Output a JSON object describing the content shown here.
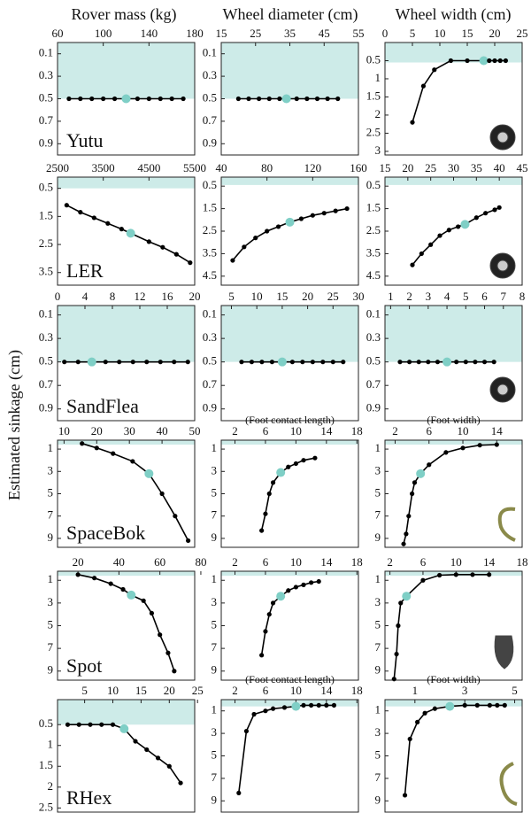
{
  "column_titles": [
    "Rover mass (kg)",
    "Wheel diameter (cm)",
    "Wheel width (cm)"
  ],
  "ylabel": "Estimated sinkage (cm)",
  "chart_data": [
    {
      "type": "line",
      "title": "Yutu",
      "x": [
        70,
        80,
        90,
        100,
        110,
        120,
        130,
        140,
        150,
        160,
        170
      ],
      "values": [
        0.5,
        0.5,
        0.5,
        0.5,
        0.5,
        0.5,
        0.5,
        0.5,
        0.5,
        0.5,
        0.5
      ],
      "highlight_index": 5,
      "color": "#000000",
      "highlight_color": "#7fcfc6",
      "xlim": [
        60,
        180
      ],
      "xticks": [
        60,
        100,
        140,
        180
      ],
      "ylim": [
        0,
        1.0
      ],
      "yticks": [
        0.1,
        0.3,
        0.5,
        0.7,
        0.9
      ],
      "y_inverted": true,
      "shade": {
        "to": 0.5,
        "color": "#cdebe8"
      }
    },
    {
      "type": "line",
      "x": [
        20,
        23,
        26,
        29,
        32,
        34,
        37,
        40,
        43,
        46,
        49
      ],
      "values": [
        0.5,
        0.5,
        0.5,
        0.5,
        0.5,
        0.5,
        0.5,
        0.5,
        0.5,
        0.5,
        0.5
      ],
      "highlight_index": 5,
      "color": "#000000",
      "highlight_color": "#7fcfc6",
      "xlim": [
        15,
        55
      ],
      "xticks": [
        15,
        25,
        35,
        45,
        55
      ],
      "ylim": [
        0,
        1.0
      ],
      "yticks": [
        0.1,
        0.3,
        0.5,
        0.7,
        0.9
      ],
      "y_inverted": true,
      "shade": {
        "to": 0.5,
        "color": "#cdebe8"
      }
    },
    {
      "type": "line",
      "x": [
        5,
        7,
        9,
        12,
        15,
        18,
        19,
        20,
        21,
        22
      ],
      "values": [
        2.2,
        1.2,
        0.75,
        0.5,
        0.5,
        0.5,
        0.5,
        0.5,
        0.5,
        0.5
      ],
      "highlight_index": 5,
      "color": "#000000",
      "highlight_color": "#7fcfc6",
      "xlim": [
        0,
        25
      ],
      "xticks": [
        0,
        5,
        10,
        15,
        20,
        25
      ],
      "ylim": [
        0,
        3.1
      ],
      "yticks": [
        0.5,
        1,
        1.5,
        2,
        2.5,
        3
      ],
      "y_inverted": true,
      "shade": {
        "to": 0.55,
        "color": "#cdebe8"
      }
    },
    {
      "type": "line",
      "title": "LER",
      "x": [
        2700,
        3000,
        3300,
        3600,
        3900,
        4100,
        4500,
        4800,
        5100,
        5400
      ],
      "values": [
        1.1,
        1.35,
        1.55,
        1.75,
        1.95,
        2.1,
        2.4,
        2.6,
        2.85,
        3.15
      ],
      "highlight_index": 5,
      "color": "#000000",
      "highlight_color": "#7fcfc6",
      "xlim": [
        2500,
        5500
      ],
      "xticks": [
        2500,
        3500,
        4500,
        5500
      ],
      "ylim": [
        0.1,
        3.95
      ],
      "yticks": [
        0.5,
        1.5,
        2.5,
        3.5
      ],
      "y_inverted": true,
      "shade": {
        "to": 0.5,
        "color": "#cdebe8"
      }
    },
    {
      "type": "line",
      "x": [
        50,
        60,
        70,
        80,
        90,
        100,
        110,
        120,
        130,
        140,
        150
      ],
      "values": [
        3.8,
        3.2,
        2.8,
        2.5,
        2.3,
        2.1,
        1.95,
        1.8,
        1.7,
        1.6,
        1.5
      ],
      "highlight_index": 5,
      "color": "#000000",
      "highlight_color": "#7fcfc6",
      "xlim": [
        40,
        160
      ],
      "xticks": [
        40,
        80,
        120,
        160
      ],
      "ylim": [
        0.1,
        4.9
      ],
      "yticks": [
        0.5,
        1.5,
        2.5,
        3.5,
        4.5
      ],
      "y_inverted": true,
      "shade": {
        "to": 0.45,
        "color": "#cdebe8"
      }
    },
    {
      "type": "line",
      "x": [
        21,
        23,
        25,
        27,
        29,
        31,
        32.5,
        35,
        37,
        39,
        40
      ],
      "values": [
        4.0,
        3.5,
        3.1,
        2.7,
        2.45,
        2.3,
        2.2,
        1.9,
        1.7,
        1.55,
        1.45
      ],
      "highlight_index": 6,
      "color": "#000000",
      "highlight_color": "#7fcfc6",
      "xlim": [
        15,
        45
      ],
      "xticks": [
        15,
        20,
        25,
        30,
        35,
        40,
        45
      ],
      "ylim": [
        0.1,
        4.9
      ],
      "yticks": [
        0.5,
        1.5,
        2.5,
        3.5,
        4.5
      ],
      "y_inverted": true,
      "shade": {
        "to": 0.45,
        "color": "#cdebe8"
      }
    },
    {
      "type": "line",
      "title": "SandFlea",
      "x": [
        1,
        3,
        5,
        7,
        9,
        11,
        13,
        15,
        17,
        19
      ],
      "values": [
        0.5,
        0.5,
        0.5,
        0.5,
        0.5,
        0.5,
        0.5,
        0.5,
        0.5,
        0.5
      ],
      "highlight_index": 2,
      "color": "#000000",
      "highlight_color": "#7fcfc6",
      "xlim": [
        0,
        20
      ],
      "xticks": [
        0,
        4,
        8,
        12,
        16,
        20
      ],
      "ylim": [
        0.02,
        1.0
      ],
      "yticks": [
        0.1,
        0.3,
        0.5,
        0.7,
        0.9
      ],
      "y_inverted": true,
      "shade": {
        "to": 0.5,
        "color": "#cdebe8"
      }
    },
    {
      "type": "line",
      "x": [
        7,
        9,
        11,
        13,
        15,
        17,
        19,
        21,
        23,
        25,
        27
      ],
      "values": [
        0.5,
        0.5,
        0.5,
        0.5,
        0.5,
        0.5,
        0.5,
        0.5,
        0.5,
        0.5,
        0.5
      ],
      "highlight_index": 4,
      "color": "#000000",
      "highlight_color": "#7fcfc6",
      "xlim": [
        3,
        30
      ],
      "xticks": [
        5,
        10,
        15,
        20,
        25,
        30
      ],
      "ylim": [
        0.02,
        1.0
      ],
      "yticks": [
        0.1,
        0.3,
        0.5,
        0.7,
        0.9
      ],
      "y_inverted": true,
      "shade": {
        "to": 0.5,
        "color": "#cdebe8"
      }
    },
    {
      "type": "line",
      "x": [
        1.5,
        2,
        2.5,
        3,
        3.5,
        4,
        4.5,
        5,
        5.5,
        6,
        6.5
      ],
      "values": [
        0.5,
        0.5,
        0.5,
        0.5,
        0.5,
        0.5,
        0.5,
        0.5,
        0.5,
        0.5,
        0.5
      ],
      "highlight_index": 5,
      "color": "#000000",
      "highlight_color": "#7fcfc6",
      "xlim": [
        0.7,
        8
      ],
      "xticks": [
        1,
        2,
        3,
        4,
        5,
        6,
        7,
        8
      ],
      "ylim": [
        0.02,
        1.0
      ],
      "yticks": [
        0.1,
        0.3,
        0.5,
        0.7,
        0.9
      ],
      "y_inverted": true,
      "shade": {
        "to": 0.5,
        "color": "#cdebe8"
      }
    },
    {
      "type": "line",
      "title": "SpaceBok",
      "x": [
        15.5,
        20,
        25,
        31,
        36,
        40,
        44,
        48
      ],
      "values": [
        0.5,
        0.9,
        1.4,
        2.1,
        3.2,
        5,
        7,
        9.2
      ],
      "highlight_index": 4,
      "color": "#000000",
      "highlight_color": "#7fcfc6",
      "xlim": [
        8,
        50
      ],
      "xticks": [
        10,
        20,
        30,
        40,
        50
      ],
      "ylim": [
        0.2,
        9.8
      ],
      "yticks": [
        1,
        3,
        5,
        7,
        9
      ],
      "y_inverted": true,
      "shade": {
        "to": 0.6,
        "color": "#cdebe8"
      }
    },
    {
      "type": "line",
      "subtitle": "(Foot contact length)",
      "x": [
        5.5,
        6,
        6.5,
        7,
        8,
        9,
        10,
        11,
        12.5
      ],
      "values": [
        8.3,
        6.8,
        5,
        4,
        3.1,
        2.6,
        2.3,
        2,
        1.8
      ],
      "highlight_index": 4,
      "color": "#000000",
      "highlight_color": "#7fcfc6",
      "xlim": [
        0.2,
        18.2
      ],
      "xticks": [
        2,
        6,
        10,
        14,
        18
      ],
      "ylim": [
        0.2,
        9.8
      ],
      "yticks": [
        1,
        3,
        5,
        7,
        9
      ],
      "y_inverted": true,
      "shade": {
        "to": 0.6,
        "color": "#cdebe8"
      }
    },
    {
      "type": "line",
      "subtitle": "(Foot width)",
      "x": [
        3,
        3.3,
        3.6,
        4,
        4.3,
        5,
        6,
        8,
        10,
        12,
        14
      ],
      "values": [
        9.5,
        8.6,
        7,
        5,
        4,
        3.2,
        2.4,
        1.3,
        0.9,
        0.65,
        0.6
      ],
      "highlight_index": 5,
      "color": "#000000",
      "highlight_color": "#7fcfc6",
      "xlim": [
        0.8,
        17
      ],
      "xticks": [
        2,
        6,
        10,
        14
      ],
      "ylim": [
        0.2,
        9.8
      ],
      "yticks": [
        1,
        3,
        5,
        7,
        9
      ],
      "y_inverted": true,
      "shade": {
        "to": 0.6,
        "color": "#cdebe8"
      }
    },
    {
      "type": "line",
      "title": "Spot",
      "x": [
        20,
        28,
        36,
        42,
        46,
        52,
        56,
        60,
        64,
        67
      ],
      "values": [
        0.5,
        0.8,
        1.3,
        1.8,
        2.3,
        2.8,
        3.9,
        5.8,
        7.4,
        9
      ],
      "highlight_index": 4,
      "color": "#000000",
      "highlight_color": "#7fcfc6",
      "xlim": [
        10,
        77
      ],
      "xticks": [
        20,
        40,
        60,
        80
      ],
      "ylim": [
        0.2,
        9.8
      ],
      "yticks": [
        1,
        3,
        5,
        7,
        9
      ],
      "y_inverted": true,
      "shade": {
        "to": 0.6,
        "color": "#cdebe8"
      }
    },
    {
      "type": "line",
      "x": [
        5.5,
        6,
        6.5,
        7,
        8,
        9,
        10,
        11,
        12,
        13
      ],
      "values": [
        7.6,
        5.5,
        4,
        3,
        2.4,
        1.9,
        1.6,
        1.4,
        1.2,
        1.1
      ],
      "highlight_index": 4,
      "color": "#000000",
      "highlight_color": "#7fcfc6",
      "xlim": [
        0.2,
        18.2
      ],
      "xticks": [
        2,
        6,
        10,
        14,
        18
      ],
      "ylim": [
        0.2,
        9.8
      ],
      "yticks": [
        1,
        3,
        5,
        7,
        9
      ],
      "y_inverted": true,
      "shade": {
        "to": 0.6,
        "color": "#cdebe8"
      }
    },
    {
      "type": "line",
      "x": [
        2.5,
        2.8,
        3,
        3.3,
        4,
        6,
        8,
        10,
        12,
        14
      ],
      "values": [
        9.7,
        7.5,
        5,
        3,
        2.4,
        1,
        0.55,
        0.5,
        0.5,
        0.5
      ],
      "highlight_index": 4,
      "color": "#000000",
      "highlight_color": "#7fcfc6",
      "xlim": [
        1.4,
        18
      ],
      "xticks": [
        2,
        6,
        10,
        14,
        18
      ],
      "ylim": [
        0.2,
        9.8
      ],
      "yticks": [
        1,
        3,
        5,
        7,
        9
      ],
      "y_inverted": true,
      "shade": {
        "to": 0.6,
        "color": "#cdebe8"
      }
    },
    {
      "type": "line",
      "title": "RHex",
      "x": [
        2,
        4,
        6,
        8,
        10,
        12,
        14,
        16,
        18,
        20,
        22
      ],
      "values": [
        0.5,
        0.5,
        0.5,
        0.5,
        0.5,
        0.6,
        0.9,
        1.1,
        1.3,
        1.5,
        1.9
      ],
      "highlight_index": 5,
      "color": "#000000",
      "highlight_color": "#7fcfc6",
      "xlim": [
        0.2,
        24.5
      ],
      "xticks": [
        5,
        10,
        15,
        20,
        25
      ],
      "ylim": [
        -0.1,
        2.6
      ],
      "yticks": [
        0.5,
        1,
        1.5,
        2,
        2.5
      ],
      "y_inverted": true,
      "shade": {
        "to": 0.5,
        "color": "#cdebe8"
      }
    },
    {
      "type": "line",
      "subtitle": "(Foot contact length)",
      "x": [
        2.5,
        3.5,
        4.5,
        6,
        7,
        8.5,
        10,
        11,
        12,
        13,
        14,
        15
      ],
      "values": [
        8.3,
        2.8,
        1.3,
        1,
        0.8,
        0.7,
        0.6,
        0.5,
        0.5,
        0.5,
        0.5,
        0.5
      ],
      "highlight_index": 6,
      "color": "#000000",
      "highlight_color": "#7fcfc6",
      "xlim": [
        0.2,
        18.2
      ],
      "xticks": [
        2,
        6,
        10,
        14,
        18
      ],
      "ylim": [
        0,
        10
      ],
      "yticks": [
        1,
        3,
        5,
        7,
        9
      ],
      "y_inverted": true,
      "shade": {
        "to": 0.6,
        "color": "#cdebe8"
      }
    },
    {
      "type": "line",
      "subtitle": "(Foot width)",
      "x": [
        0.6,
        0.8,
        1.1,
        1.4,
        1.8,
        2.4,
        3,
        3.5,
        4,
        4.3,
        4.6
      ],
      "values": [
        8.5,
        3.5,
        2,
        1.2,
        0.8,
        0.6,
        0.5,
        0.5,
        0.5,
        0.5,
        0.5
      ],
      "highlight_index": 5,
      "color": "#000000",
      "highlight_color": "#7fcfc6",
      "xlim": [
        -0.2,
        5.3
      ],
      "xticks": [
        1,
        3,
        5
      ],
      "ylim": [
        0,
        10
      ],
      "yticks": [
        1,
        3,
        5,
        7,
        9
      ],
      "y_inverted": true,
      "shade": {
        "to": 0.6,
        "color": "#cdebe8"
      }
    }
  ]
}
